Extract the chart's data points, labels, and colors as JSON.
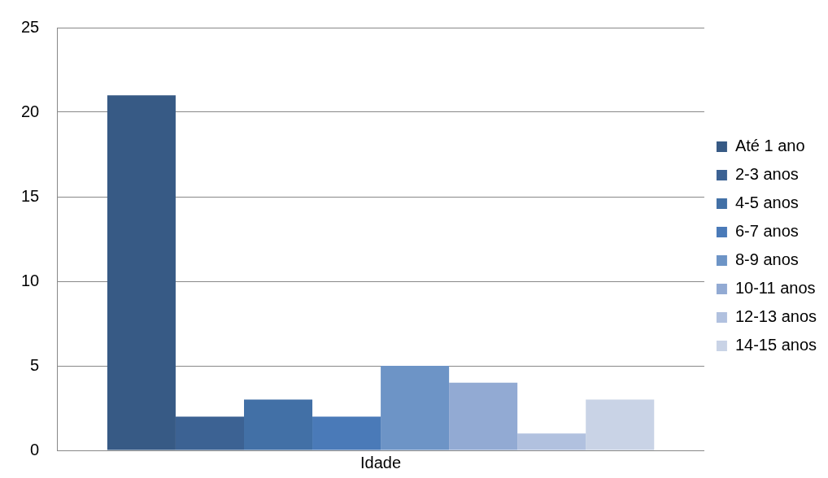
{
  "chart_data": {
    "type": "bar",
    "categories": [
      "Idade"
    ],
    "series": [
      {
        "name": "Até 1 ano",
        "color": "#375a85",
        "values": [
          21
        ]
      },
      {
        "name": "2-3 anos",
        "color": "#3c6293",
        "values": [
          2
        ]
      },
      {
        "name": "4-5 anos",
        "color": "#4270a6",
        "values": [
          3
        ]
      },
      {
        "name": "6-7 anos",
        "color": "#4a7ab8",
        "values": [
          2
        ]
      },
      {
        "name": "8-9 anos",
        "color": "#6d94c6",
        "values": [
          5
        ]
      },
      {
        "name": "10-11 anos",
        "color": "#92aad3",
        "values": [
          4
        ]
      },
      {
        "name": "12-13 anos",
        "color": "#b1c1df",
        "values": [
          1
        ]
      },
      {
        "name": "14-15 anos",
        "color": "#c9d3e6",
        "values": [
          3
        ]
      }
    ],
    "ylim": [
      0,
      25
    ],
    "yticks": [
      0,
      5,
      10,
      15,
      20,
      25
    ],
    "grid": "y",
    "legend": "right"
  }
}
